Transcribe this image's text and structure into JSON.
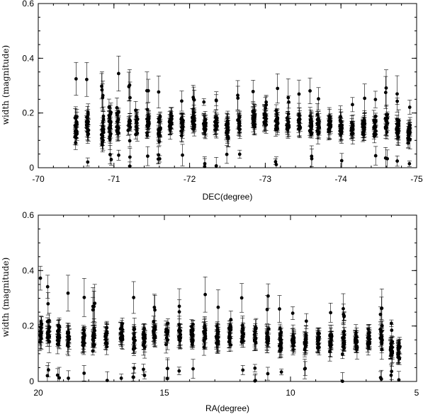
{
  "chart_data": [
    {
      "type": "scatter",
      "xlabel": "DEC(degree)",
      "ylabel": "width (magnitude)",
      "xlim": [
        -70,
        -75
      ],
      "ylim": [
        0,
        0.6
      ],
      "xticks": [
        "-70",
        "-71",
        "-72",
        "-73",
        "-74",
        "-75"
      ],
      "yticks": [
        "0",
        "0.2",
        "0.4",
        "0.6"
      ],
      "error_bars": true,
      "grid": false,
      "columns": [
        {
          "x": -70.5,
          "center": 0.14,
          "spread": 0.09
        },
        {
          "x": -70.65,
          "center": 0.15,
          "spread": 0.08
        },
        {
          "x": -70.85,
          "center": 0.14,
          "spread": 0.07
        },
        {
          "x": -70.95,
          "center": 0.16,
          "spread": 0.09
        },
        {
          "x": -71.05,
          "center": 0.16,
          "spread": 0.09
        },
        {
          "x": -71.2,
          "center": 0.15,
          "spread": 0.07
        },
        {
          "x": -71.3,
          "center": 0.16,
          "spread": 0.06
        },
        {
          "x": -71.45,
          "center": 0.16,
          "spread": 0.06
        },
        {
          "x": -71.6,
          "center": 0.15,
          "spread": 0.06
        },
        {
          "x": -71.75,
          "center": 0.16,
          "spread": 0.05
        },
        {
          "x": -71.9,
          "center": 0.16,
          "spread": 0.05
        },
        {
          "x": -72.05,
          "center": 0.17,
          "spread": 0.04
        },
        {
          "x": -72.2,
          "center": 0.16,
          "spread": 0.04
        },
        {
          "x": -72.35,
          "center": 0.16,
          "spread": 0.04
        },
        {
          "x": -72.5,
          "center": 0.15,
          "spread": 0.05
        },
        {
          "x": -72.65,
          "center": 0.16,
          "spread": 0.05
        },
        {
          "x": -72.85,
          "center": 0.17,
          "spread": 0.06
        },
        {
          "x": -73.0,
          "center": 0.18,
          "spread": 0.07
        },
        {
          "x": -73.15,
          "center": 0.17,
          "spread": 0.06
        },
        {
          "x": -73.3,
          "center": 0.16,
          "spread": 0.05
        },
        {
          "x": -73.45,
          "center": 0.17,
          "spread": 0.05
        },
        {
          "x": -73.6,
          "center": 0.16,
          "spread": 0.05
        },
        {
          "x": -73.7,
          "center": 0.16,
          "spread": 0.05
        },
        {
          "x": -73.85,
          "center": 0.16,
          "spread": 0.05
        },
        {
          "x": -74.0,
          "center": 0.15,
          "spread": 0.05
        },
        {
          "x": -74.15,
          "center": 0.14,
          "spread": 0.05
        },
        {
          "x": -74.3,
          "center": 0.15,
          "spread": 0.05
        },
        {
          "x": -74.45,
          "center": 0.15,
          "spread": 0.06
        },
        {
          "x": -74.6,
          "center": 0.16,
          "spread": 0.06
        },
        {
          "x": -74.75,
          "center": 0.14,
          "spread": 0.06
        },
        {
          "x": -74.9,
          "center": 0.13,
          "spread": 0.06
        }
      ]
    },
    {
      "type": "scatter",
      "xlabel": "RA(degree)",
      "ylabel": "width (magnitude)",
      "xlim": [
        20,
        5
      ],
      "ylim": [
        0,
        0.6
      ],
      "xticks": [
        "20",
        "15",
        "10",
        "5"
      ],
      "yticks": [
        "0",
        "0.2",
        "0.4",
        "0.6"
      ],
      "error_bars": true,
      "grid": false,
      "columns": [
        {
          "x": 19.9,
          "center": 0.18,
          "spread": 0.08
        },
        {
          "x": 19.6,
          "center": 0.17,
          "spread": 0.07
        },
        {
          "x": 19.2,
          "center": 0.17,
          "spread": 0.07
        },
        {
          "x": 18.8,
          "center": 0.16,
          "spread": 0.07
        },
        {
          "x": 18.2,
          "center": 0.16,
          "spread": 0.07
        },
        {
          "x": 17.8,
          "center": 0.16,
          "spread": 0.06
        },
        {
          "x": 17.3,
          "center": 0.17,
          "spread": 0.06
        },
        {
          "x": 16.7,
          "center": 0.17,
          "spread": 0.06
        },
        {
          "x": 16.2,
          "center": 0.15,
          "spread": 0.07
        },
        {
          "x": 15.8,
          "center": 0.16,
          "spread": 0.05
        },
        {
          "x": 15.4,
          "center": 0.17,
          "spread": 0.05
        },
        {
          "x": 14.9,
          "center": 0.17,
          "spread": 0.05
        },
        {
          "x": 14.4,
          "center": 0.17,
          "spread": 0.05
        },
        {
          "x": 13.9,
          "center": 0.17,
          "spread": 0.05
        },
        {
          "x": 13.4,
          "center": 0.17,
          "spread": 0.06
        },
        {
          "x": 12.9,
          "center": 0.17,
          "spread": 0.06
        },
        {
          "x": 12.4,
          "center": 0.18,
          "spread": 0.07
        },
        {
          "x": 11.9,
          "center": 0.18,
          "spread": 0.07
        },
        {
          "x": 11.4,
          "center": 0.17,
          "spread": 0.06
        },
        {
          "x": 10.9,
          "center": 0.16,
          "spread": 0.06
        },
        {
          "x": 10.4,
          "center": 0.15,
          "spread": 0.06
        },
        {
          "x": 9.9,
          "center": 0.14,
          "spread": 0.05
        },
        {
          "x": 9.4,
          "center": 0.14,
          "spread": 0.05
        },
        {
          "x": 8.9,
          "center": 0.15,
          "spread": 0.05
        },
        {
          "x": 8.4,
          "center": 0.14,
          "spread": 0.05
        },
        {
          "x": 7.9,
          "center": 0.14,
          "spread": 0.05
        },
        {
          "x": 7.4,
          "center": 0.14,
          "spread": 0.05
        },
        {
          "x": 6.9,
          "center": 0.15,
          "spread": 0.05
        },
        {
          "x": 6.4,
          "center": 0.16,
          "spread": 0.05
        },
        {
          "x": 6.0,
          "center": 0.12,
          "spread": 0.04
        },
        {
          "x": 5.7,
          "center": 0.11,
          "spread": 0.04
        }
      ]
    }
  ]
}
